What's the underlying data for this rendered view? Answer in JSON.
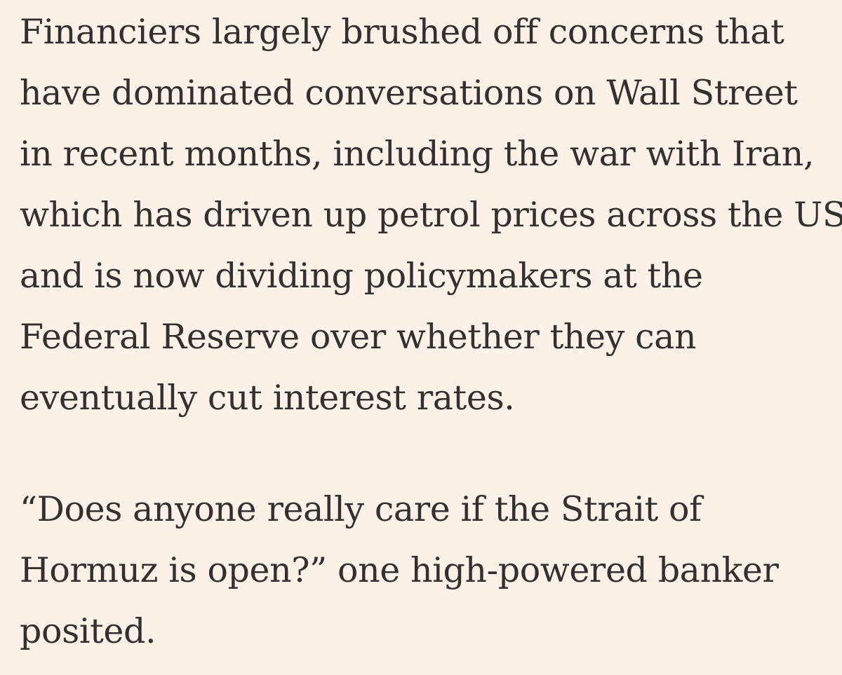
{
  "article": {
    "paragraphs": [
      {
        "lines": [
          "Financiers largely brushed off concerns that",
          "have dominated conversations on Wall Street",
          "in recent months, including the war with Iran,",
          "which has driven up petrol prices across the US",
          "and is now dividing policymakers at the",
          "Federal Reserve over whether they can",
          "eventually cut interest rates."
        ]
      },
      {
        "lines": [
          "“Does anyone really care if the Strait of",
          "Hormuz is open?” one high-powered banker",
          "posited."
        ]
      }
    ]
  },
  "colors": {
    "background": "#fcf1e7",
    "text": "#33302e"
  }
}
